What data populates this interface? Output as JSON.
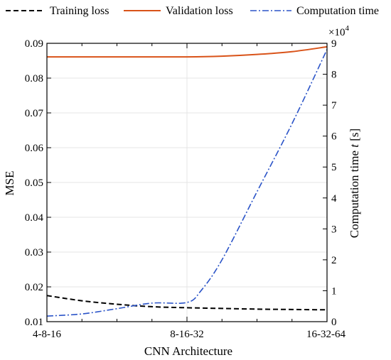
{
  "chart_data": {
    "type": "line",
    "x_axis": {
      "label": "CNN Architecture",
      "categories": [
        "4-8-16",
        "8-16-32",
        "16-32-64"
      ]
    },
    "y_left": {
      "label": "MSE",
      "ylim": [
        0.01,
        0.09
      ],
      "ticks": [
        "0.01",
        "0.02",
        "0.03",
        "0.04",
        "0.05",
        "0.06",
        "0.07",
        "0.08",
        "0.09"
      ]
    },
    "y_right": {
      "label_main": "Computation time ",
      "label_var": "t",
      "label_unit": " [s]",
      "multiplier_base": "×10",
      "multiplier_exp": "4",
      "ylim": [
        0,
        9
      ],
      "ticks": [
        "0",
        "1",
        "2",
        "3",
        "4",
        "5",
        "6",
        "7",
        "8",
        "9"
      ]
    },
    "grid": true,
    "legend_position": "top",
    "series": [
      {
        "name": "Training loss",
        "axis": "left",
        "color": "#000000",
        "style": "dashed",
        "x": [
          0,
          0.25,
          0.5,
          0.75,
          1,
          1.25,
          1.5,
          1.75,
          2
        ],
        "values": [
          0.0175,
          0.016,
          0.015,
          0.0143,
          0.014,
          0.0138,
          0.0136,
          0.0135,
          0.0134
        ]
      },
      {
        "name": "Validation loss",
        "axis": "left",
        "color": "#d95319",
        "style": "solid",
        "x": [
          0,
          0.5,
          1,
          1.25,
          1.5,
          1.75,
          2
        ],
        "values": [
          0.0861,
          0.0861,
          0.0861,
          0.0863,
          0.0868,
          0.0876,
          0.089
        ]
      },
      {
        "name": "Computation time",
        "axis": "right",
        "color": "#2b54c8",
        "style": "dashdot",
        "x": [
          0,
          0.25,
          0.5,
          0.75,
          1,
          1.1,
          1.25,
          1.5,
          1.75,
          2
        ],
        "values": [
          0.18,
          0.25,
          0.42,
          0.6,
          0.62,
          1.0,
          2.0,
          4.2,
          6.4,
          8.8
        ]
      }
    ]
  }
}
